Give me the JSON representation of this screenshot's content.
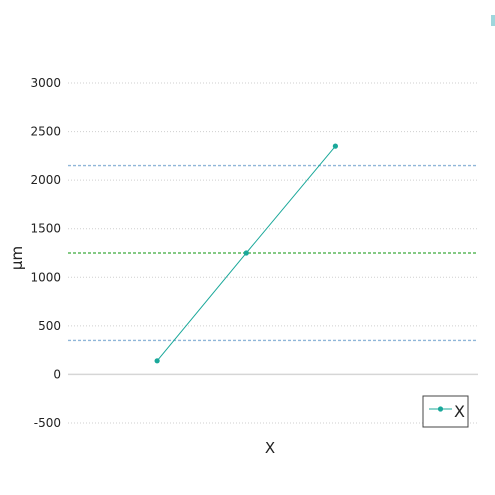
{
  "chart_data": {
    "type": "line",
    "title": "",
    "xlabel": "X",
    "ylabel": "μm",
    "ylim": [
      -500,
      3000
    ],
    "y_ticks": [
      {
        "value": -500,
        "label": "-500"
      },
      {
        "value": 0,
        "label": "0"
      },
      {
        "value": 500,
        "label": "500"
      },
      {
        "value": 1000,
        "label": "1000"
      },
      {
        "value": 1500,
        "label": "1500"
      },
      {
        "value": 2000,
        "label": "2000"
      },
      {
        "value": 2500,
        "label": "2500"
      },
      {
        "value": 3000,
        "label": "3000"
      }
    ],
    "grid": "horizontal-dotted",
    "x": [
      1,
      2,
      3
    ],
    "xlim": [
      0,
      4.6
    ],
    "series": [
      {
        "name": "X",
        "values": [
          140,
          1250,
          2350
        ],
        "color": "#1aa89a"
      }
    ],
    "reference_lines": [
      {
        "value": 2150,
        "color": "#8fb6d8",
        "style": "dashed"
      },
      {
        "value": 1250,
        "color": "#3aaa3a",
        "style": "dashed"
      },
      {
        "value": 350,
        "color": "#8fb6d8",
        "style": "dashed"
      }
    ],
    "legend": {
      "position": "bottom-right"
    }
  }
}
